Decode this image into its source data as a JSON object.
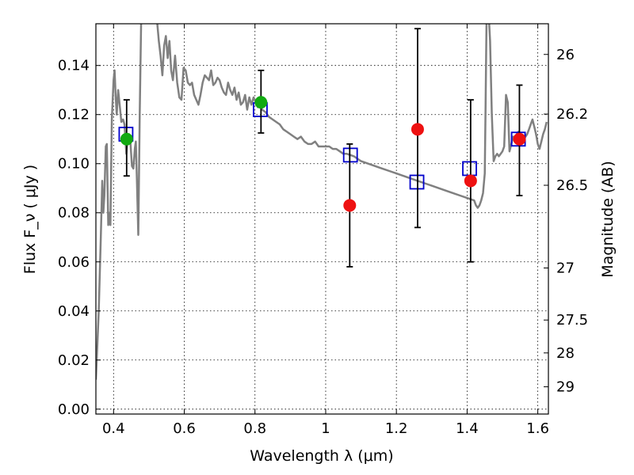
{
  "chart_data": {
    "type": "scatter",
    "title": "",
    "xlabel": "Wavelength  λ (μm)",
    "ylabel": "Flux  F_ν  ( μJy )",
    "ylabel_right": "Magnitude (AB)",
    "xlim": [
      0.35,
      1.63
    ],
    "ylim": [
      -0.002,
      0.157
    ],
    "grid": true,
    "x_ticks": [
      {
        "value": 0.4,
        "label": "0.4"
      },
      {
        "value": 0.6,
        "label": "0.6"
      },
      {
        "value": 0.8,
        "label": "0.8"
      },
      {
        "value": 1.0,
        "label": "1"
      },
      {
        "value": 1.2,
        "label": "1.2"
      },
      {
        "value": 1.4,
        "label": "1.4"
      },
      {
        "value": 1.6,
        "label": "1.6"
      }
    ],
    "y_ticks": [
      {
        "value": 0.0,
        "label": "0.00"
      },
      {
        "value": 0.02,
        "label": "0.02"
      },
      {
        "value": 0.04,
        "label": "0.04"
      },
      {
        "value": 0.06,
        "label": "0.06"
      },
      {
        "value": 0.08,
        "label": "0.08"
      },
      {
        "value": 0.1,
        "label": "0.10"
      },
      {
        "value": 0.12,
        "label": "0.12"
      },
      {
        "value": 0.14,
        "label": "0.14"
      }
    ],
    "right_ticks": [
      {
        "flux": 0.1445,
        "label": "26"
      },
      {
        "flux": 0.1202,
        "label": "26.2"
      },
      {
        "flux": 0.0912,
        "label": "26.5"
      },
      {
        "flux": 0.0575,
        "label": "27"
      },
      {
        "flux": 0.0363,
        "label": "27.5"
      },
      {
        "flux": 0.0229,
        "label": "28"
      },
      {
        "flux": 0.0091,
        "label": "29"
      }
    ],
    "series": [
      {
        "type": "line",
        "color": "#808080",
        "points": [
          [
            0.35,
            0.012
          ],
          [
            0.358,
            0.04
          ],
          [
            0.364,
            0.07
          ],
          [
            0.368,
            0.093
          ],
          [
            0.371,
            0.08
          ],
          [
            0.374,
            0.087
          ],
          [
            0.378,
            0.107
          ],
          [
            0.381,
            0.108
          ],
          [
            0.385,
            0.075
          ],
          [
            0.388,
            0.08
          ],
          [
            0.391,
            0.075
          ],
          [
            0.395,
            0.118
          ],
          [
            0.4,
            0.134
          ],
          [
            0.403,
            0.138
          ],
          [
            0.406,
            0.127
          ],
          [
            0.409,
            0.12
          ],
          [
            0.413,
            0.13
          ],
          [
            0.418,
            0.123
          ],
          [
            0.422,
            0.117
          ],
          [
            0.427,
            0.118
          ],
          [
            0.431,
            0.116
          ],
          [
            0.436,
            0.104
          ],
          [
            0.44,
            0.11
          ],
          [
            0.444,
            0.112
          ],
          [
            0.448,
            0.108
          ],
          [
            0.452,
            0.099
          ],
          [
            0.456,
            0.098
          ],
          [
            0.46,
            0.106
          ],
          [
            0.463,
            0.109
          ],
          [
            0.466,
            0.094
          ],
          [
            0.47,
            0.071
          ],
          [
            0.474,
            0.12
          ],
          [
            0.478,
            0.158
          ],
          [
            0.485,
            0.158
          ],
          [
            0.5,
            0.158
          ],
          [
            0.515,
            0.158
          ],
          [
            0.523,
            0.158
          ],
          [
            0.528,
            0.15
          ],
          [
            0.533,
            0.144
          ],
          [
            0.538,
            0.136
          ],
          [
            0.543,
            0.148
          ],
          [
            0.548,
            0.152
          ],
          [
            0.553,
            0.143
          ],
          [
            0.558,
            0.15
          ],
          [
            0.563,
            0.138
          ],
          [
            0.568,
            0.134
          ],
          [
            0.574,
            0.144
          ],
          [
            0.58,
            0.133
          ],
          [
            0.586,
            0.127
          ],
          [
            0.592,
            0.126
          ],
          [
            0.598,
            0.139
          ],
          [
            0.604,
            0.138
          ],
          [
            0.61,
            0.133
          ],
          [
            0.616,
            0.132
          ],
          [
            0.622,
            0.133
          ],
          [
            0.628,
            0.128
          ],
          [
            0.634,
            0.126
          ],
          [
            0.64,
            0.124
          ],
          [
            0.646,
            0.128
          ],
          [
            0.652,
            0.133
          ],
          [
            0.658,
            0.136
          ],
          [
            0.664,
            0.135
          ],
          [
            0.67,
            0.134
          ],
          [
            0.676,
            0.138
          ],
          [
            0.682,
            0.132
          ],
          [
            0.688,
            0.133
          ],
          [
            0.694,
            0.135
          ],
          [
            0.7,
            0.134
          ],
          [
            0.706,
            0.131
          ],
          [
            0.712,
            0.129
          ],
          [
            0.718,
            0.128
          ],
          [
            0.724,
            0.133
          ],
          [
            0.73,
            0.13
          ],
          [
            0.736,
            0.128
          ],
          [
            0.742,
            0.131
          ],
          [
            0.748,
            0.126
          ],
          [
            0.754,
            0.129
          ],
          [
            0.76,
            0.124
          ],
          [
            0.766,
            0.125
          ],
          [
            0.772,
            0.128
          ],
          [
            0.778,
            0.122
          ],
          [
            0.784,
            0.127
          ],
          [
            0.79,
            0.124
          ],
          [
            0.796,
            0.127
          ],
          [
            0.802,
            0.125
          ],
          [
            0.808,
            0.123
          ],
          [
            0.814,
            0.124
          ],
          [
            0.82,
            0.122
          ],
          [
            0.83,
            0.121
          ],
          [
            0.84,
            0.119
          ],
          [
            0.85,
            0.118
          ],
          [
            0.86,
            0.117
          ],
          [
            0.87,
            0.116
          ],
          [
            0.88,
            0.114
          ],
          [
            0.89,
            0.113
          ],
          [
            0.9,
            0.112
          ],
          [
            0.91,
            0.111
          ],
          [
            0.92,
            0.11
          ],
          [
            0.93,
            0.111
          ],
          [
            0.94,
            0.109
          ],
          [
            0.95,
            0.108
          ],
          [
            0.96,
            0.108
          ],
          [
            0.97,
            0.109
          ],
          [
            0.98,
            0.107
          ],
          [
            0.99,
            0.107
          ],
          [
            1.0,
            0.107
          ],
          [
            1.01,
            0.107
          ],
          [
            1.02,
            0.106
          ],
          [
            1.03,
            0.106
          ],
          [
            1.04,
            0.105
          ],
          [
            1.05,
            0.104
          ],
          [
            1.06,
            0.104
          ],
          [
            1.08,
            0.103
          ],
          [
            1.1,
            0.101
          ],
          [
            1.12,
            0.1
          ],
          [
            1.14,
            0.099
          ],
          [
            1.16,
            0.098
          ],
          [
            1.18,
            0.097
          ],
          [
            1.2,
            0.096
          ],
          [
            1.22,
            0.095
          ],
          [
            1.24,
            0.094
          ],
          [
            1.26,
            0.093
          ],
          [
            1.28,
            0.092
          ],
          [
            1.3,
            0.091
          ],
          [
            1.32,
            0.09
          ],
          [
            1.34,
            0.089
          ],
          [
            1.36,
            0.088
          ],
          [
            1.38,
            0.087
          ],
          [
            1.4,
            0.086
          ],
          [
            1.42,
            0.085
          ],
          [
            1.425,
            0.083
          ],
          [
            1.43,
            0.082
          ],
          [
            1.435,
            0.083
          ],
          [
            1.44,
            0.085
          ],
          [
            1.445,
            0.088
          ],
          [
            1.45,
            0.096
          ],
          [
            1.452,
            0.12
          ],
          [
            1.455,
            0.158
          ],
          [
            1.462,
            0.158
          ],
          [
            1.465,
            0.15
          ],
          [
            1.47,
            0.12
          ],
          [
            1.475,
            0.101
          ],
          [
            1.48,
            0.103
          ],
          [
            1.485,
            0.104
          ],
          [
            1.49,
            0.103
          ],
          [
            1.495,
            0.104
          ],
          [
            1.5,
            0.105
          ],
          [
            1.505,
            0.107
          ],
          [
            1.51,
            0.128
          ],
          [
            1.515,
            0.125
          ],
          [
            1.52,
            0.105
          ],
          [
            1.525,
            0.108
          ],
          [
            1.53,
            0.111
          ],
          [
            1.535,
            0.11
          ],
          [
            1.54,
            0.112
          ],
          [
            1.545,
            0.113
          ],
          [
            1.55,
            0.112
          ],
          [
            1.555,
            0.108
          ],
          [
            1.56,
            0.11
          ],
          [
            1.565,
            0.111
          ],
          [
            1.57,
            0.112
          ],
          [
            1.575,
            0.114
          ],
          [
            1.58,
            0.116
          ],
          [
            1.585,
            0.118
          ],
          [
            1.59,
            0.115
          ],
          [
            1.595,
            0.112
          ],
          [
            1.6,
            0.108
          ],
          [
            1.605,
            0.106
          ],
          [
            1.61,
            0.109
          ],
          [
            1.615,
            0.112
          ],
          [
            1.62,
            0.114
          ],
          [
            1.625,
            0.117
          ]
        ]
      },
      {
        "type": "points",
        "marker": "square",
        "color": "#0000cc",
        "points": [
          [
            0.435,
            0.112
          ],
          [
            0.815,
            0.122
          ],
          [
            1.07,
            0.1035
          ],
          [
            1.258,
            0.0925
          ],
          [
            1.407,
            0.098
          ],
          [
            1.545,
            0.11
          ]
        ]
      },
      {
        "type": "points",
        "marker": "circle",
        "color": "#ee1111",
        "points": [
          [
            1.068,
            0.083
          ],
          [
            1.26,
            0.114
          ],
          [
            1.41,
            0.093
          ],
          [
            1.548,
            0.11
          ]
        ],
        "errorbars": [
          [
            0.058,
            0.108
          ],
          [
            0.074,
            0.155
          ],
          [
            0.06,
            0.126
          ],
          [
            0.087,
            0.132
          ]
        ]
      },
      {
        "type": "points",
        "marker": "circle",
        "color": "#11aa11",
        "points": [
          [
            0.437,
            0.11
          ],
          [
            0.817,
            0.125
          ]
        ],
        "errorbars": [
          [
            0.095,
            0.126
          ],
          [
            0.1125,
            0.138
          ]
        ]
      }
    ]
  }
}
